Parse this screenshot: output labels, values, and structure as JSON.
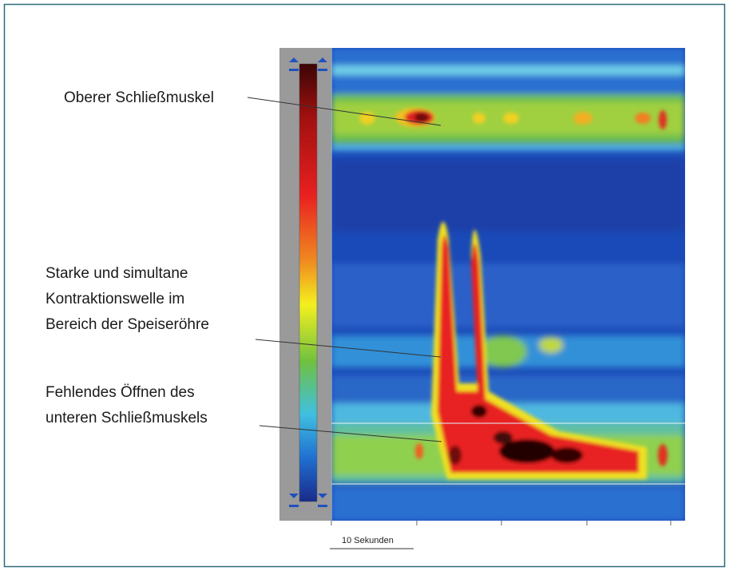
{
  "annotations": [
    {
      "lines": [
        "Oberer Schließmuskel"
      ]
    },
    {
      "lines": [
        "Starke und simultane",
        "Kontraktionswelle im",
        "Bereich der Speiseröhre"
      ]
    },
    {
      "lines": [
        "Fehlendes Öffnen des",
        "unteren Schließmuskels"
      ]
    }
  ],
  "scale_bar": {
    "label": "10 Sekunden"
  }
}
